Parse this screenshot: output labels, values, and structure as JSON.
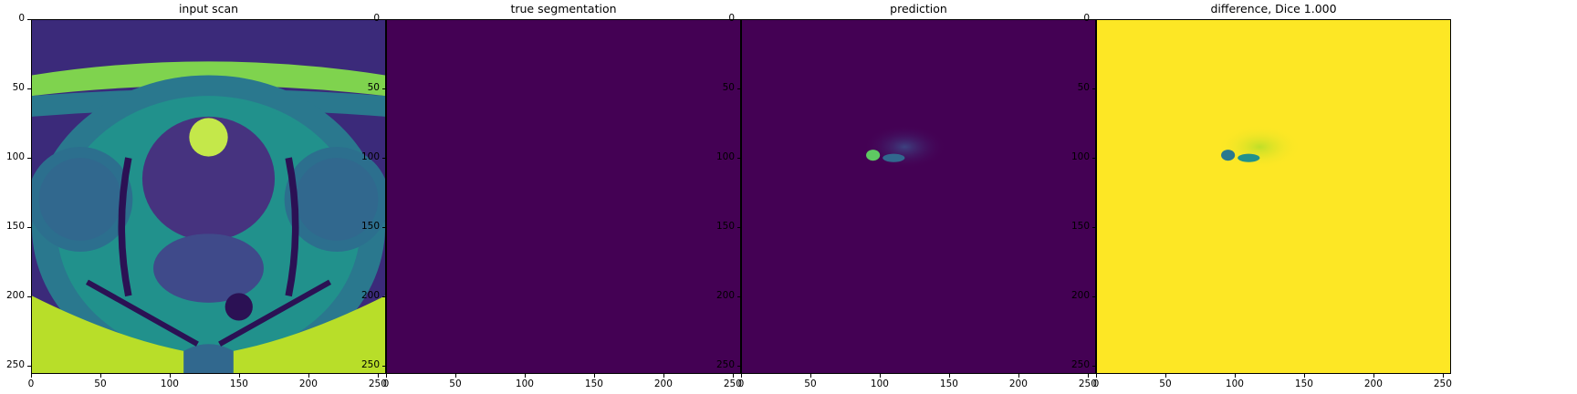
{
  "panels": [
    {
      "title": "input scan"
    },
    {
      "title": "true segmentation"
    },
    {
      "title": "prediction"
    },
    {
      "title": "difference, Dice 1.000"
    }
  ],
  "ticks": [
    "0",
    "50",
    "100",
    "150",
    "200",
    "250"
  ],
  "colors": {
    "viridis_dark": "#440154",
    "viridis_mid": "#21918c",
    "viridis_teal": "#2a788e",
    "viridis_green": "#5ec962",
    "viridis_yellow": "#fde725"
  }
}
